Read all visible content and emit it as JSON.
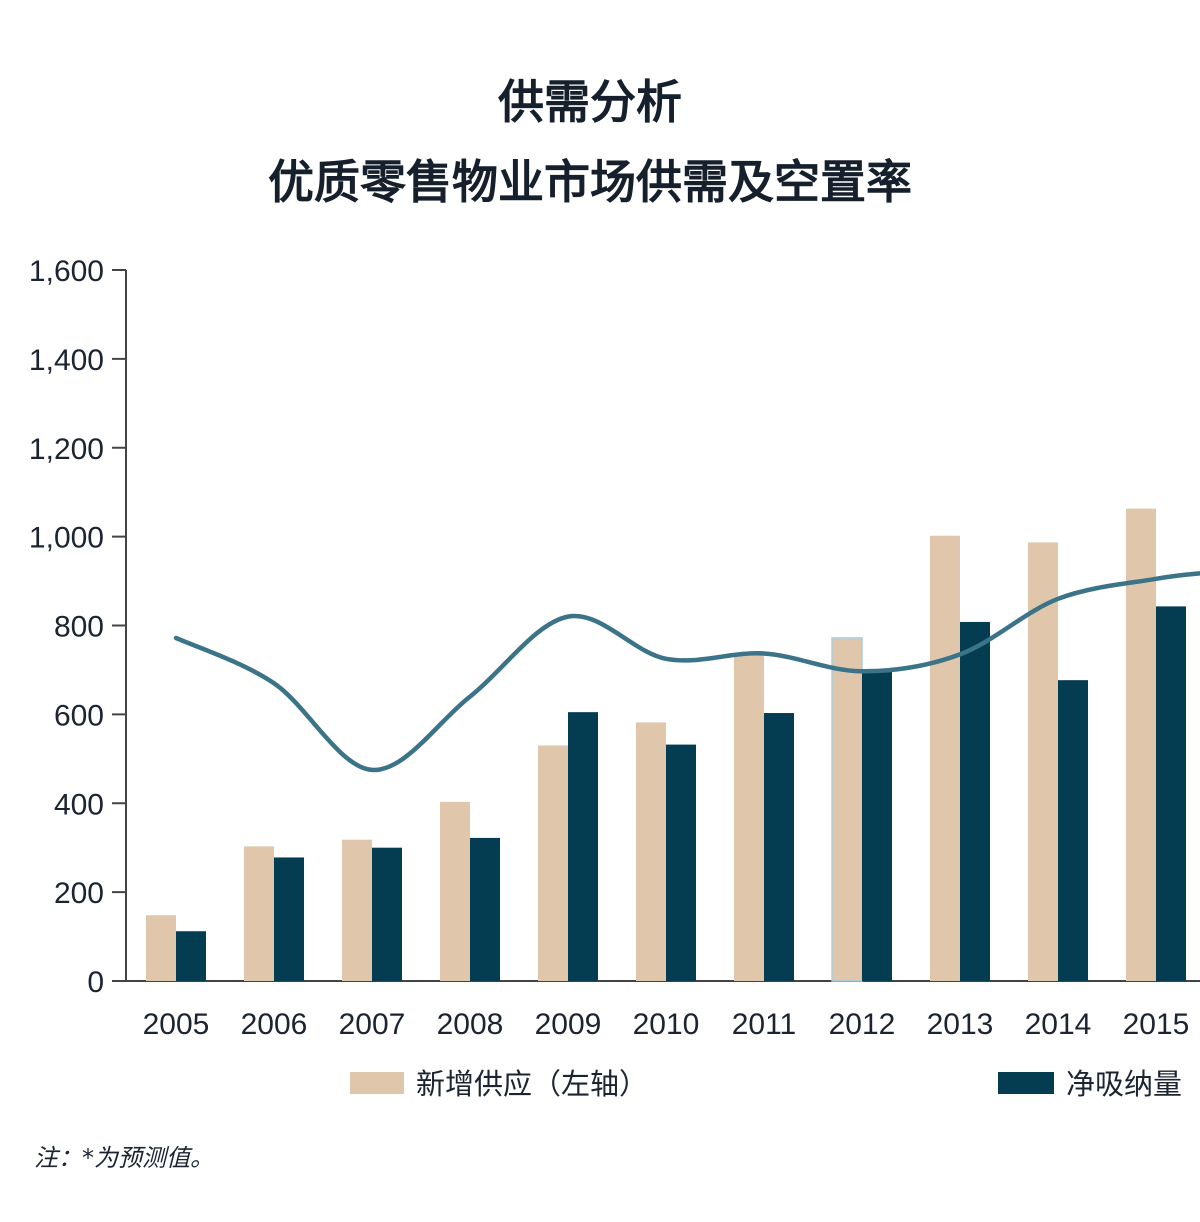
{
  "title": {
    "line1": "供需分析",
    "line2": "优质零售物业市场供需及空置率"
  },
  "note": "注：*为预测值。",
  "colors": {
    "new_supply": "#e0c6ab",
    "net_absorption": "#043d52",
    "vacancy_line": "#3b7388",
    "axis": "#444444"
  },
  "chart_data": {
    "type": "bar",
    "categories": [
      "2005",
      "2006",
      "2007",
      "2008",
      "2009",
      "2010",
      "2011",
      "2012",
      "2013",
      "2014",
      "2015"
    ],
    "ylim": [
      0,
      1600
    ],
    "yticks": [
      "0",
      "200",
      "400",
      "600",
      "800",
      "1,000",
      "1,200",
      "1,400",
      "1,600"
    ],
    "ytick_values": [
      0,
      200,
      400,
      600,
      800,
      1000,
      1200,
      1400,
      1600
    ],
    "series": [
      {
        "name": "新增供应（左轴）",
        "values": [
          148,
          303,
          318,
          403,
          530,
          582,
          733,
          772,
          1002,
          987,
          1063
        ]
      },
      {
        "name": "净吸纳量",
        "values": [
          112,
          278,
          300,
          322,
          605,
          532,
          603,
          698,
          808,
          677,
          843
        ]
      }
    ],
    "line_series": {
      "note": "vacancy rate curve plotted in left-axis units (right axis not visible)",
      "values": [
        772,
        670,
        475,
        640,
        820,
        725,
        737,
        697,
        735,
        860,
        905
      ]
    },
    "legend": [
      "新增供应（左轴）",
      "净吸纳量"
    ]
  }
}
